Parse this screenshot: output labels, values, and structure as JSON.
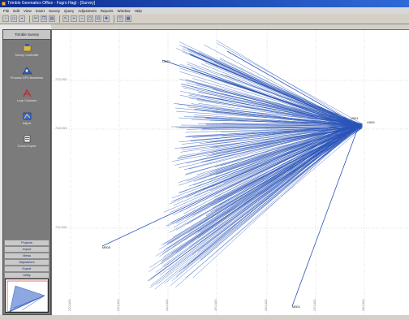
{
  "window": {
    "title": "Trimble Geomatics Office - Fugro Hagl - [Survey]"
  },
  "menu": [
    "File",
    "Edit",
    "View",
    "Insert",
    "Survey",
    "Query",
    "Adjustment",
    "Reports",
    "Window",
    "Help"
  ],
  "sidebar": {
    "title": "Trimble Survey",
    "items": [
      {
        "label": "Survey Controller",
        "icon": "survey-controller-icon"
      },
      {
        "label": "Process GPS Baselines",
        "icon": "process-gps-icon"
      },
      {
        "label": "Loop Closures",
        "icon": "loop-closures-icon"
      },
      {
        "label": "Adjust",
        "icon": "adjust-icon"
      },
      {
        "label": "Check Export",
        "icon": "export-icon"
      }
    ],
    "categories": [
      "Projects",
      "Import",
      "Views",
      "Adjustment",
      "Export",
      "Utility"
    ]
  },
  "plot": {
    "left_labels": [
      "733,000",
      "728,000",
      "722,000"
    ],
    "bottom_labels": [
      "220,000",
      "230,000",
      "240,000",
      "250,000",
      "260,000",
      "270,000",
      "280,000"
    ],
    "point_labels": [
      "U002",
      "U000",
      "M505",
      "M501",
      "U001"
    ],
    "line_color": "#2a54b8"
  }
}
